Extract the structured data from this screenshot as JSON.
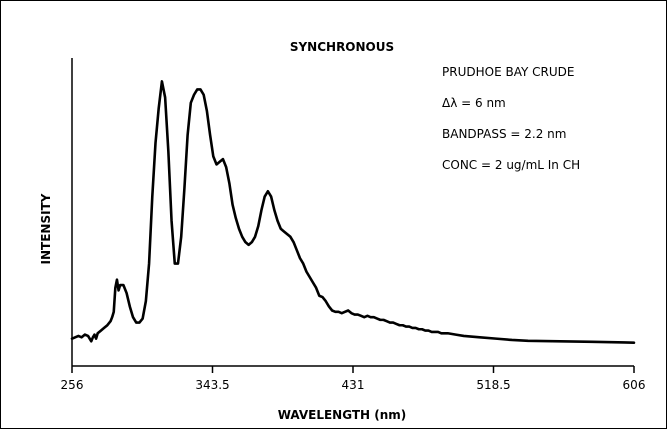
{
  "chart_data": {
    "type": "line",
    "title": "SYNCHRONOUS",
    "xlabel": "WAVELENGTH (nm)",
    "ylabel": "INTENSITY",
    "xlim": [
      256,
      606
    ],
    "ylim": [
      0,
      100
    ],
    "x_ticks": [
      256,
      343.5,
      431,
      518.5,
      606
    ],
    "x_tick_labels": [
      "256",
      "343.5",
      "431",
      "518.5",
      "606"
    ],
    "grid": false,
    "annotations": [
      "PRUDHOE BAY CRUDE",
      "Δλ = 6 nm",
      "BANDPASS = 2.2 nm",
      "CONC = 2 ug/mL In CH"
    ],
    "series": [
      {
        "color": "#000000",
        "x": [
          256,
          258,
          260,
          262,
          264,
          266,
          268,
          269,
          270,
          271,
          272,
          274,
          276,
          278,
          280,
          281,
          282,
          283,
          284,
          285,
          286,
          288,
          290,
          292,
          294,
          296,
          298,
          300,
          302,
          304,
          306,
          308,
          310,
          312,
          314,
          316,
          318,
          320,
          322,
          324,
          326,
          328,
          330,
          332,
          334,
          336,
          338,
          340,
          342,
          344,
          346,
          348,
          350,
          352,
          354,
          356,
          358,
          360,
          362,
          364,
          366,
          368,
          370,
          372,
          374,
          376,
          378,
          380,
          382,
          384,
          386,
          388,
          390,
          392,
          394,
          396,
          398,
          400,
          402,
          404,
          406,
          408,
          410,
          412,
          414,
          416,
          418,
          420,
          422,
          424,
          426,
          428,
          430,
          432,
          434,
          436,
          438,
          440,
          442,
          444,
          446,
          448,
          450,
          452,
          454,
          456,
          458,
          460,
          462,
          464,
          466,
          468,
          470,
          472,
          474,
          476,
          478,
          480,
          482,
          484,
          486,
          488,
          490,
          495,
          500,
          510,
          520,
          530,
          540,
          560,
          580,
          600,
          606
        ],
        "y": [
          2,
          2.5,
          3,
          2.5,
          3.5,
          3,
          1,
          2.5,
          3.5,
          2,
          4,
          5,
          6,
          7,
          8.5,
          10,
          12,
          21,
          24,
          20,
          22,
          22,
          19,
          14,
          10,
          8,
          8,
          9.5,
          16,
          30,
          55,
          75,
          88,
          98,
          92,
          72,
          46,
          30,
          30,
          40,
          58,
          78,
          90,
          93,
          95,
          95,
          93,
          87,
          78,
          70,
          67,
          68,
          69,
          66,
          60,
          52,
          47,
          43,
          40,
          38,
          37,
          38,
          40,
          44,
          50,
          55,
          57,
          55,
          50,
          46,
          43,
          42,
          41,
          40,
          38,
          35,
          32,
          30,
          27,
          25,
          23,
          21,
          18,
          17.5,
          16,
          14,
          12.5,
          12,
          12,
          11.5,
          12,
          12.5,
          11.5,
          11,
          11,
          10.5,
          10,
          10.5,
          10,
          10,
          9.5,
          9,
          9,
          8.5,
          8,
          8,
          7.5,
          7,
          7,
          6.5,
          6.5,
          6,
          6,
          5.5,
          5.5,
          5,
          5,
          4.5,
          4.5,
          4.5,
          4,
          4,
          4,
          3.5,
          3,
          2.5,
          2,
          1.5,
          1.2,
          1,
          0.8,
          0.6,
          0.5
        ]
      }
    ]
  }
}
